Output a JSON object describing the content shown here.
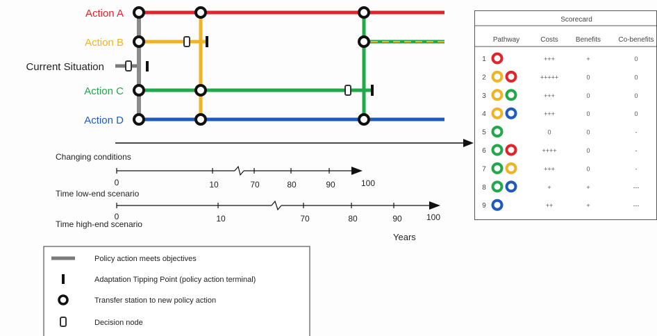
{
  "actions": [
    {
      "label": "Action A",
      "color": "#e0242b"
    },
    {
      "label": "Action B",
      "color": "#f0b323"
    },
    {
      "label": "Current Situation",
      "color": "#7a7a7a"
    },
    {
      "label": "Action C",
      "color": "#21a84a"
    },
    {
      "label": "Action D",
      "color": "#1f5bbf"
    }
  ],
  "axes": {
    "conditions_label": "Changing conditions",
    "low_label": "Time low-end scenario",
    "high_label": "Time high-end scenario",
    "years_label": "Years",
    "low_ticks": [
      "0",
      "10",
      "70",
      "80",
      "90",
      "100"
    ],
    "high_ticks": [
      "0",
      "10",
      "70",
      "80",
      "90",
      "100"
    ]
  },
  "scorecard": {
    "title": "Scorecard",
    "headers": [
      "Pathway",
      "Costs",
      "Benefits",
      "Co-benefits"
    ],
    "rows": [
      {
        "n": "1",
        "rings": [
          "red"
        ],
        "costs": "+++",
        "benefits": "+",
        "co": "0"
      },
      {
        "n": "2",
        "rings": [
          "yellow",
          "red"
        ],
        "costs": "+++++",
        "benefits": "0",
        "co": "0"
      },
      {
        "n": "3",
        "rings": [
          "yellow",
          "green"
        ],
        "costs": "+++",
        "benefits": "0",
        "co": "0"
      },
      {
        "n": "4",
        "rings": [
          "yellow",
          "blue"
        ],
        "costs": "+++",
        "benefits": "0",
        "co": "0"
      },
      {
        "n": "5",
        "rings": [
          "green"
        ],
        "costs": "0",
        "benefits": "0",
        "co": "-"
      },
      {
        "n": "6",
        "rings": [
          "green",
          "red"
        ],
        "costs": "++++",
        "benefits": "0",
        "co": "-"
      },
      {
        "n": "7",
        "rings": [
          "green",
          "yellow"
        ],
        "costs": "+++",
        "benefits": "0",
        "co": "-"
      },
      {
        "n": "8",
        "rings": [
          "green",
          "blue"
        ],
        "costs": "+",
        "benefits": "+",
        "co": "---"
      },
      {
        "n": "9",
        "rings": [
          "blue"
        ],
        "costs": "++",
        "benefits": "+",
        "co": "---"
      }
    ]
  },
  "legend": [
    {
      "symbol": "bar",
      "text": "Policy action meets objectives"
    },
    {
      "symbol": "tick",
      "text": "Adaptation Tipping Point (policy action terminal)"
    },
    {
      "symbol": "ring",
      "text": "Transfer station to new policy action"
    },
    {
      "symbol": "node",
      "text": "Decision node"
    }
  ],
  "ring_colors": {
    "red": "#e0242b",
    "yellow": "#f0b323",
    "green": "#21a84a",
    "blue": "#1f5bbf"
  }
}
